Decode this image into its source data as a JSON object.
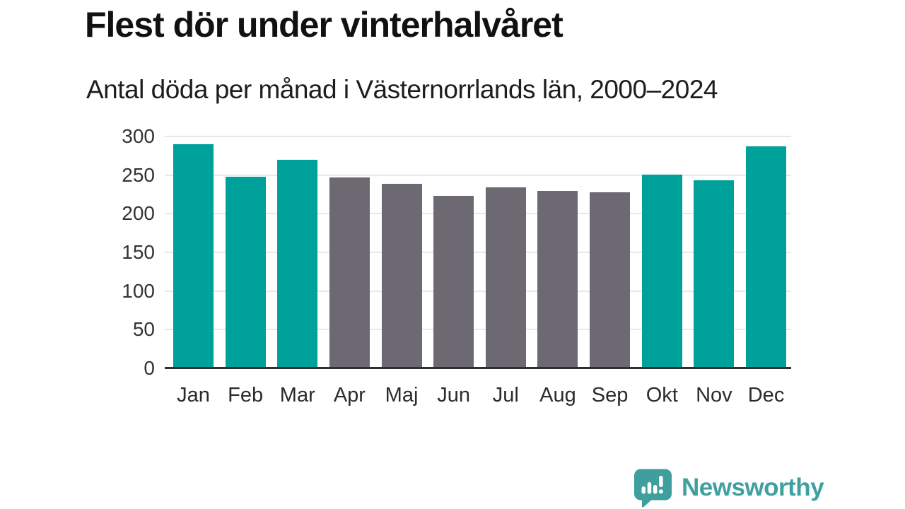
{
  "header": {
    "title": "Flest dör under vinterhalvåret",
    "subtitle": "Antal döda per månad i Västernorrlands län, 2000–2024"
  },
  "chart_data": {
    "type": "bar",
    "title": "Flest dör under vinterhalvåret",
    "subtitle": "Antal döda per månad i Västernorrlands län, 2000–2024",
    "categories": [
      "Jan",
      "Feb",
      "Mar",
      "Apr",
      "Maj",
      "Jun",
      "Jul",
      "Aug",
      "Sep",
      "Okt",
      "Nov",
      "Dec"
    ],
    "values": [
      290,
      248,
      270,
      247,
      239,
      223,
      234,
      230,
      228,
      251,
      243,
      287
    ],
    "bar_colors": [
      "teal",
      "teal",
      "teal",
      "gray",
      "gray",
      "gray",
      "gray",
      "gray",
      "gray",
      "teal",
      "teal",
      "teal"
    ],
    "palette": {
      "teal": "#00a19a",
      "gray": "#6c6972"
    },
    "xlabel": "",
    "ylabel": "",
    "ylim": [
      0,
      300
    ],
    "yticks": [
      0,
      50,
      100,
      150,
      200,
      250,
      300
    ],
    "grid": true,
    "legend": false
  },
  "footer": {
    "brand": "Newsworthy",
    "brand_color": "#3fa0a0",
    "icon": "newsworthy-speech-bubble-barchart-icon",
    "icon_color": "#3f9e9e"
  },
  "colors": {
    "background": "#ffffff",
    "axis_line": "#2f2f2f",
    "grid_line": "#e8e8e8",
    "tick_text": "#333333",
    "title_text": "#111111"
  }
}
